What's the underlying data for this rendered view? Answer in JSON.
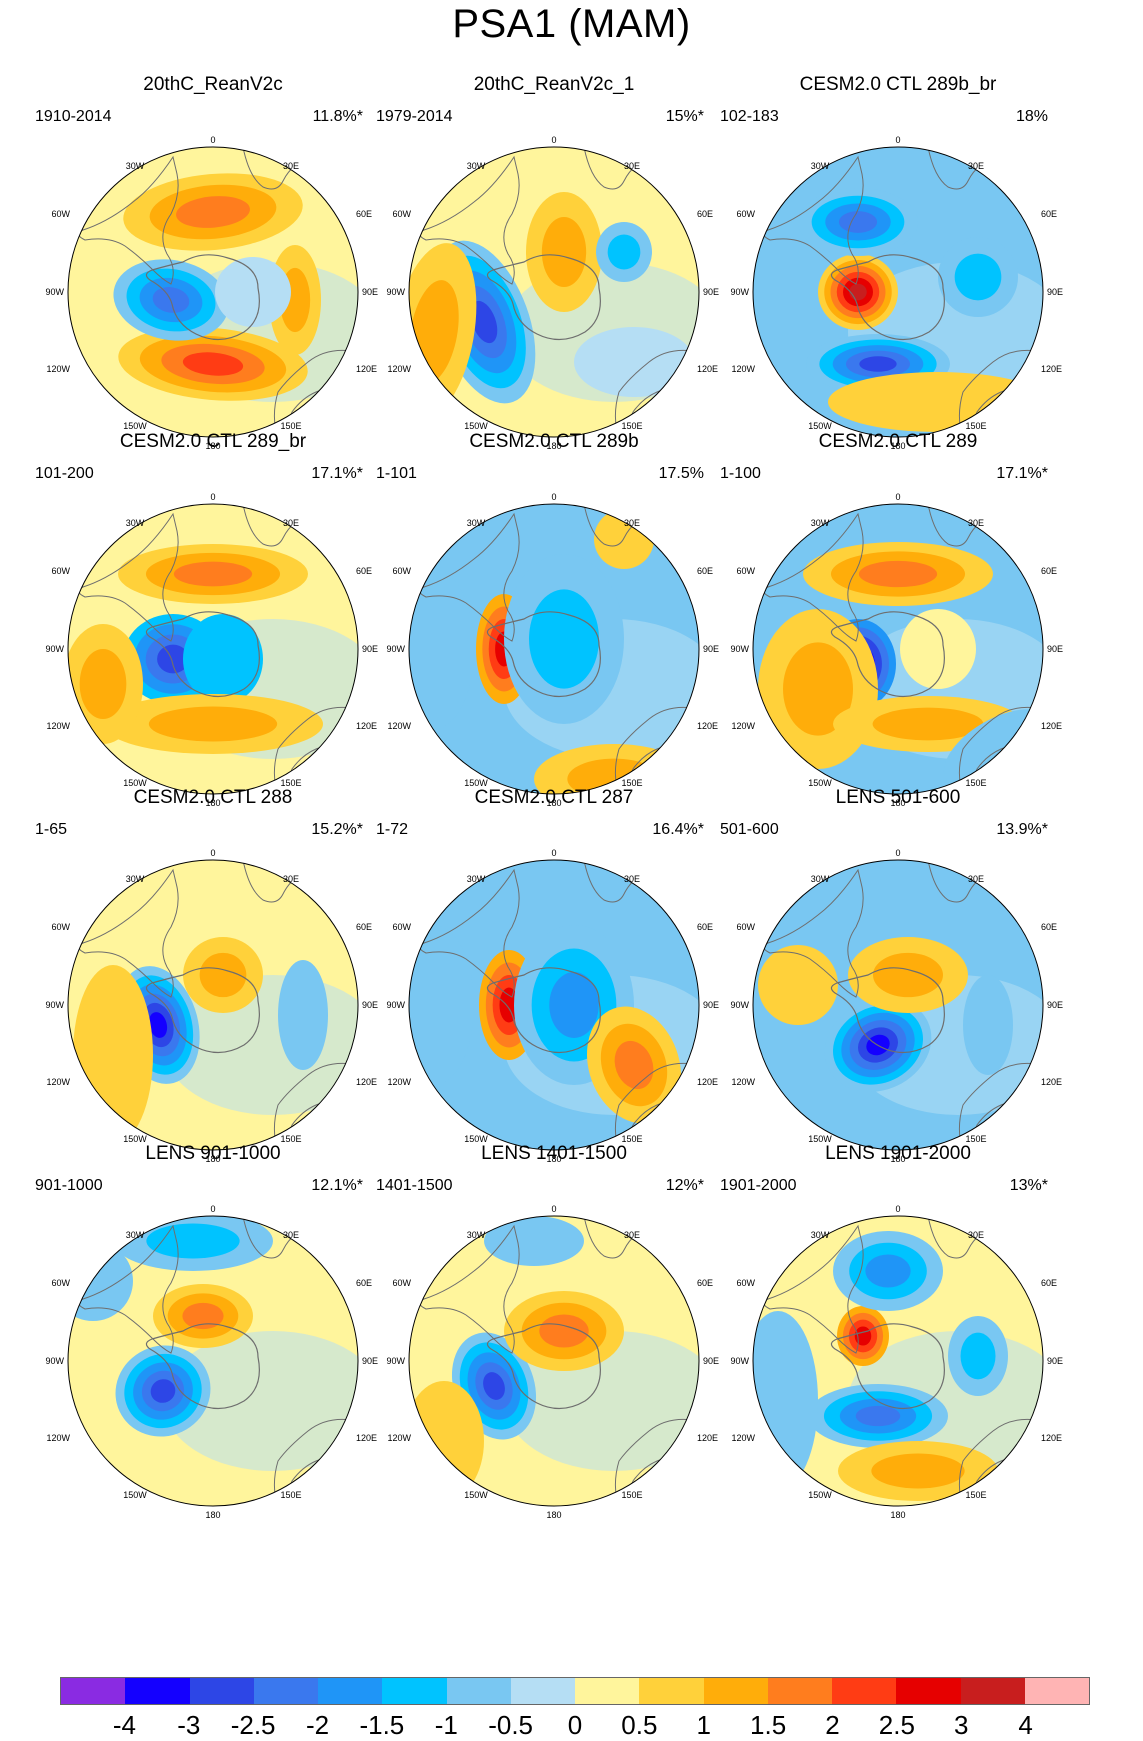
{
  "title": "PSA1 (MAM)",
  "colors": [
    "#8a2be2",
    "#1400ff",
    "#2d46e6",
    "#3a78ee",
    "#1f95f7",
    "#00c3ff",
    "#79c7f2",
    "#b5def4",
    "#fff59c",
    "#ffd13a",
    "#ffad0a",
    "#ff7d1e",
    "#ff3c14",
    "#e60000",
    "#c81e1e",
    "#ffb4b4"
  ],
  "colorbar_labels": [
    "-4",
    "-3",
    "-2.5",
    "-2",
    "-1.5",
    "-1",
    "-0.5",
    "0",
    "0.5",
    "1",
    "1.5",
    "2",
    "2.5",
    "3",
    "4"
  ],
  "tick_labels": {
    "top": "0",
    "bottom": "180",
    "lon30w": "30W",
    "lon30e": "30E",
    "lon60w": "60W",
    "lon60e": "60E",
    "lon90w": "90W",
    "lon90e": "90E",
    "lon120w": "120W",
    "lon120e": "120E",
    "lon150w": "150W",
    "lon150e": "150E"
  },
  "panels": [
    {
      "title": "20thC_ReanV2c",
      "years": "1910-2014",
      "pct": "11.8%*"
    },
    {
      "title": "20thC_ReanV2c_1",
      "years": "1979-2014",
      "pct": "15%*"
    },
    {
      "title": "CESM2.0 CTL 289b_br",
      "years": "102-183",
      "pct": "18%"
    },
    {
      "title": "CESM2.0 CTL 289_br",
      "years": "101-200",
      "pct": "17.1%*"
    },
    {
      "title": "CESM2.0 CTL 289b",
      "years": "1-101",
      "pct": "17.5%"
    },
    {
      "title": "CESM2.0 CTL 289",
      "years": "1-100",
      "pct": "17.1%*"
    },
    {
      "title": "CESM2.0 CTL 288",
      "years": "1-65",
      "pct": "15.2%*"
    },
    {
      "title": "CESM2.0 CTL 287",
      "years": "1-72",
      "pct": "16.4%*"
    },
    {
      "title": "LENS 501-600",
      "years": "501-600",
      "pct": "13.9%*"
    },
    {
      "title": "LENS 901-1000",
      "years": "901-1000",
      "pct": "12.1%*"
    },
    {
      "title": "LENS 1401-1500",
      "years": "1401-1500",
      "pct": "12%*"
    },
    {
      "title": "LENS 1901-2000",
      "years": "1901-2000",
      "pct": "13%*"
    }
  ]
}
